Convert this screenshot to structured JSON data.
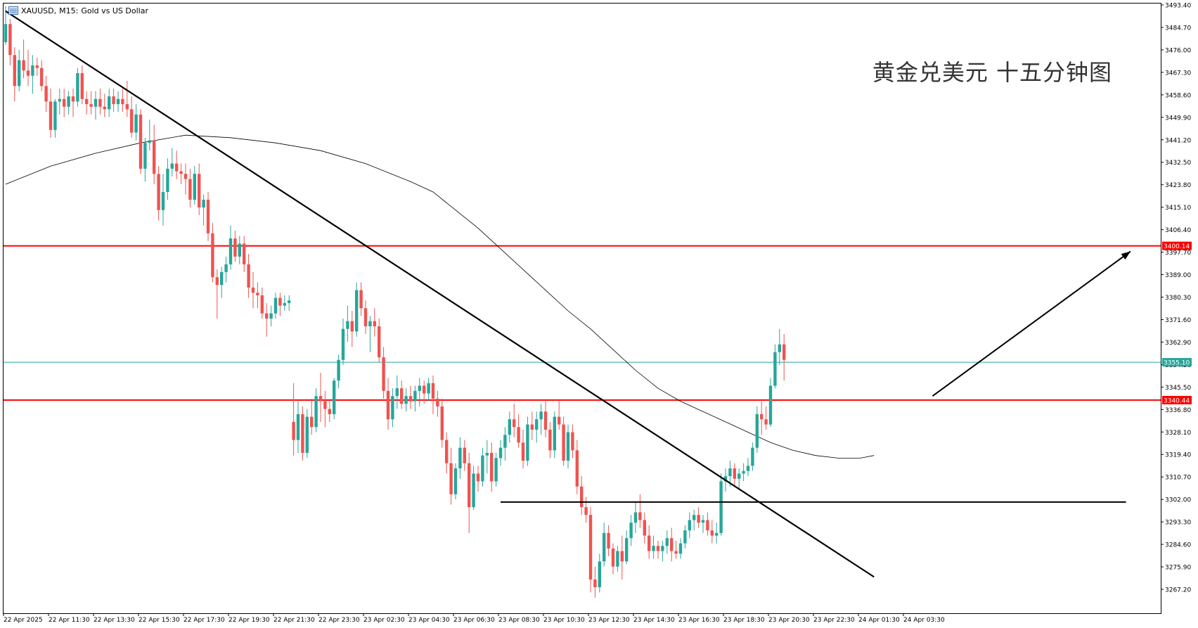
{
  "header": {
    "symbol": "XAUUSD,",
    "timeframe": "M15:",
    "description": "Gold vs US Dollar",
    "menu_icon": "chart-window-icon"
  },
  "overlay_title": "黄金兑美元 十五分钟图",
  "colors": {
    "bull": "#26a69a",
    "bear": "#ef5350",
    "horizontal_red": "#ff0000",
    "bid_line": "#26a69a",
    "ma_line": "#000000",
    "trend_line": "#000000"
  },
  "chart_data": {
    "type": "candlestick",
    "symbol": "XAUUSD",
    "timeframe": "M15",
    "ylim": [
      3261.0,
      3494.0
    ],
    "y_ticks": [
      "3493.40",
      "3484.70",
      "3476.00",
      "3467.30",
      "3458.60",
      "3449.90",
      "3441.20",
      "3432.50",
      "3423.80",
      "3415.10",
      "3406.40",
      "3397.70",
      "3389.00",
      "3380.30",
      "3371.60",
      "3362.90",
      "3354.20",
      "3345.50",
      "3336.80",
      "3328.10",
      "3319.40",
      "3310.70",
      "3302.00",
      "3293.30",
      "3284.60",
      "3275.90",
      "3267.20"
    ],
    "x_ticks": [
      "22 Apr 2025",
      "22 Apr 11:30",
      "22 Apr 13:30",
      "22 Apr 15:30",
      "22 Apr 17:30",
      "22 Apr 19:30",
      "22 Apr 21:30",
      "22 Apr 23:30",
      "23 Apr 02:30",
      "23 Apr 04:30",
      "23 Apr 06:30",
      "23 Apr 08:30",
      "23 Apr 10:30",
      "23 Apr 12:30",
      "23 Apr 14:30",
      "23 Apr 16:30",
      "23 Apr 18:30",
      "23 Apr 20:30",
      "23 Apr 22:30",
      "24 Apr 01:30",
      "24 Apr 03:30"
    ],
    "price_labels": [
      {
        "value": 3400.14,
        "text": "3400.14",
        "color": "#ff0000"
      },
      {
        "value": 3355.1,
        "text": "3355.10",
        "color": "#26a69a"
      },
      {
        "value": 3340.44,
        "text": "3340.44",
        "color": "#ff0000"
      }
    ],
    "horizontal_lines": [
      {
        "value": 3400.14,
        "color": "#ff0000"
      },
      {
        "value": 3355.1,
        "color": "#26a69a"
      },
      {
        "value": 3340.44,
        "color": "#ff0000"
      }
    ],
    "support_line": {
      "value": 3301.0,
      "from_index": 110,
      "to_index": 249
    },
    "trend_line": {
      "start": {
        "index": 0,
        "price": 3491.0
      },
      "end": {
        "index": 193,
        "price": 3272.0
      }
    },
    "arrow": {
      "start": {
        "index": 206,
        "price": 3342.0
      },
      "end": {
        "index": 250,
        "price": 3398.0
      }
    },
    "candles": [
      [
        3479,
        3493,
        3478,
        3486
      ],
      [
        3486,
        3488,
        3470,
        3474
      ],
      [
        3474,
        3477,
        3456,
        3462
      ],
      [
        3462,
        3476,
        3460,
        3472
      ],
      [
        3472,
        3480,
        3465,
        3468
      ],
      [
        3468,
        3476,
        3462,
        3466
      ],
      [
        3466,
        3474,
        3459,
        3470
      ],
      [
        3470,
        3473,
        3466,
        3469
      ],
      [
        3469,
        3472,
        3460,
        3462
      ],
      [
        3462,
        3466,
        3452,
        3456
      ],
      [
        3456,
        3461,
        3442,
        3445
      ],
      [
        3445,
        3457,
        3442,
        3456
      ],
      [
        3456,
        3461,
        3451,
        3457
      ],
      [
        3457,
        3461,
        3450,
        3454
      ],
      [
        3454,
        3460,
        3451,
        3458
      ],
      [
        3458,
        3461,
        3450,
        3456
      ],
      [
        3456,
        3469,
        3454,
        3467
      ],
      [
        3467,
        3470,
        3455,
        3457
      ],
      [
        3457,
        3460,
        3451,
        3455
      ],
      [
        3455,
        3460,
        3451,
        3454
      ],
      [
        3454,
        3460,
        3449,
        3457
      ],
      [
        3457,
        3461,
        3451,
        3454
      ],
      [
        3454,
        3459,
        3450,
        3453
      ],
      [
        3453,
        3461,
        3450,
        3458
      ],
      [
        3458,
        3461,
        3452,
        3455
      ],
      [
        3455,
        3460,
        3452,
        3457
      ],
      [
        3457,
        3461,
        3452,
        3455
      ],
      [
        3455,
        3464,
        3450,
        3453
      ],
      [
        3453,
        3458,
        3442,
        3444
      ],
      [
        3444,
        3455,
        3441,
        3451
      ],
      [
        3451,
        3453,
        3428,
        3430
      ],
      [
        3430,
        3442,
        3425,
        3440
      ],
      [
        3440,
        3449,
        3437,
        3441
      ],
      [
        3441,
        3447,
        3424,
        3428
      ],
      [
        3428,
        3431,
        3410,
        3414
      ],
      [
        3414,
        3428,
        3408,
        3421
      ],
      [
        3421,
        3434,
        3418,
        3430
      ],
      [
        3430,
        3438,
        3427,
        3432
      ],
      [
        3432,
        3437,
        3426,
        3429
      ],
      [
        3429,
        3432,
        3424,
        3428
      ],
      [
        3428,
        3432,
        3420,
        3426
      ],
      [
        3426,
        3430,
        3415,
        3418
      ],
      [
        3418,
        3431,
        3416,
        3428
      ],
      [
        3428,
        3432,
        3412,
        3415
      ],
      [
        3415,
        3420,
        3408,
        3418
      ],
      [
        3418,
        3421,
        3402,
        3405
      ],
      [
        3405,
        3409,
        3386,
        3388
      ],
      [
        3388,
        3391,
        3372,
        3385
      ],
      [
        3385,
        3392,
        3380,
        3390
      ],
      [
        3390,
        3396,
        3386,
        3393
      ],
      [
        3393,
        3408,
        3391,
        3403
      ],
      [
        3403,
        3406,
        3394,
        3396
      ],
      [
        3396,
        3404,
        3393,
        3401
      ],
      [
        3401,
        3404,
        3390,
        3393
      ],
      [
        3393,
        3397,
        3380,
        3384
      ],
      [
        3384,
        3390,
        3376,
        3382
      ],
      [
        3382,
        3386,
        3376,
        3381
      ],
      [
        3381,
        3384,
        3372,
        3374
      ],
      [
        3374,
        3378,
        3365,
        3372
      ],
      [
        3372,
        3377,
        3369,
        3374
      ],
      [
        3374,
        3382,
        3372,
        3380
      ],
      [
        3380,
        3382,
        3373,
        3377
      ],
      [
        3377,
        3381,
        3375,
        3378
      ],
      [
        3378,
        3381,
        3375,
        3379
      ],
      [
        3332,
        3347,
        3319,
        3325
      ],
      [
        3325,
        3340,
        3320,
        3335
      ],
      [
        3335,
        3338,
        3317,
        3320
      ],
      [
        3320,
        3337,
        3318,
        3334
      ],
      [
        3334,
        3341,
        3327,
        3330
      ],
      [
        3330,
        3345,
        3328,
        3342
      ],
      [
        3342,
        3351,
        3332,
        3340
      ],
      [
        3340,
        3344,
        3330,
        3337
      ],
      [
        3337,
        3340,
        3332,
        3335
      ],
      [
        3335,
        3349,
        3333,
        3348
      ],
      [
        3348,
        3358,
        3345,
        3356
      ],
      [
        3356,
        3372,
        3354,
        3368
      ],
      [
        3368,
        3377,
        3363,
        3371
      ],
      [
        3371,
        3375,
        3361,
        3367
      ],
      [
        3367,
        3386,
        3365,
        3383
      ],
      [
        3383,
        3386,
        3373,
        3376
      ],
      [
        3376,
        3379,
        3366,
        3369
      ],
      [
        3369,
        3373,
        3359,
        3371
      ],
      [
        3371,
        3376,
        3365,
        3369
      ],
      [
        3369,
        3372,
        3355,
        3357
      ],
      [
        3357,
        3361,
        3341,
        3344
      ],
      [
        3344,
        3349,
        3329,
        3333
      ],
      [
        3333,
        3345,
        3330,
        3342
      ],
      [
        3342,
        3350,
        3337,
        3345
      ],
      [
        3345,
        3348,
        3337,
        3339
      ],
      [
        3339,
        3345,
        3336,
        3342
      ],
      [
        3342,
        3346,
        3337,
        3340
      ],
      [
        3340,
        3346,
        3336,
        3344
      ],
      [
        3344,
        3349,
        3338,
        3346
      ],
      [
        3346,
        3348,
        3339,
        3343
      ],
      [
        3343,
        3349,
        3340,
        3347
      ],
      [
        3347,
        3350,
        3335,
        3341
      ],
      [
        3341,
        3344,
        3334,
        3338
      ],
      [
        3338,
        3341,
        3322,
        3325
      ],
      [
        3325,
        3328,
        3312,
        3316
      ],
      [
        3316,
        3322,
        3300,
        3304
      ],
      [
        3304,
        3316,
        3302,
        3314
      ],
      [
        3314,
        3326,
        3310,
        3322
      ],
      [
        3322,
        3325,
        3313,
        3316
      ],
      [
        3316,
        3320,
        3289,
        3299
      ],
      [
        3299,
        3315,
        3298,
        3312
      ],
      [
        3312,
        3315,
        3305,
        3309
      ],
      [
        3309,
        3322,
        3307,
        3319
      ],
      [
        3319,
        3325,
        3312,
        3320
      ],
      [
        3320,
        3324,
        3305,
        3309
      ],
      [
        3309,
        3320,
        3307,
        3318
      ],
      [
        3318,
        3325,
        3315,
        3322
      ],
      [
        3322,
        3330,
        3317,
        3327
      ],
      [
        3327,
        3336,
        3324,
        3333
      ],
      [
        3333,
        3339,
        3326,
        3330
      ],
      [
        3330,
        3335,
        3322,
        3324
      ],
      [
        3324,
        3329,
        3314,
        3317
      ],
      [
        3317,
        3334,
        3315,
        3331
      ],
      [
        3331,
        3336,
        3325,
        3329
      ],
      [
        3329,
        3336,
        3324,
        3333
      ],
      [
        3333,
        3339,
        3327,
        3336
      ],
      [
        3336,
        3340,
        3326,
        3329
      ],
      [
        3329,
        3332,
        3318,
        3321
      ],
      [
        3321,
        3336,
        3318,
        3334
      ],
      [
        3334,
        3340,
        3329,
        3331
      ],
      [
        3331,
        3334,
        3315,
        3317
      ],
      [
        3317,
        3331,
        3314,
        3328
      ],
      [
        3328,
        3331,
        3318,
        3321
      ],
      [
        3321,
        3325,
        3304,
        3307
      ],
      [
        3307,
        3311,
        3296,
        3299
      ],
      [
        3299,
        3303,
        3293,
        3296
      ],
      [
        3296,
        3299,
        3266,
        3271
      ],
      [
        3271,
        3276,
        3264,
        3268
      ],
      [
        3268,
        3281,
        3266,
        3278
      ],
      [
        3278,
        3293,
        3276,
        3289
      ],
      [
        3289,
        3292,
        3280,
        3283
      ],
      [
        3283,
        3285,
        3273,
        3276
      ],
      [
        3276,
        3284,
        3274,
        3282
      ],
      [
        3282,
        3288,
        3271,
        3278
      ],
      [
        3278,
        3290,
        3277,
        3287
      ],
      [
        3287,
        3296,
        3284,
        3293
      ],
      [
        3293,
        3301,
        3289,
        3297
      ],
      [
        3297,
        3304,
        3291,
        3294
      ],
      [
        3294,
        3297,
        3285,
        3288
      ],
      [
        3288,
        3292,
        3279,
        3282
      ],
      [
        3282,
        3288,
        3279,
        3284
      ],
      [
        3284,
        3286,
        3279,
        3282
      ],
      [
        3282,
        3286,
        3278,
        3284
      ],
      [
        3284,
        3290,
        3281,
        3287
      ],
      [
        3287,
        3291,
        3278,
        3282
      ],
      [
        3282,
        3286,
        3279,
        3281
      ],
      [
        3281,
        3287,
        3279,
        3285
      ],
      [
        3285,
        3292,
        3283,
        3290
      ],
      [
        3290,
        3297,
        3287,
        3294
      ],
      [
        3294,
        3298,
        3290,
        3296
      ],
      [
        3296,
        3299,
        3291,
        3293
      ],
      [
        3293,
        3296,
        3289,
        3294
      ],
      [
        3294,
        3297,
        3288,
        3290
      ],
      [
        3290,
        3294,
        3285,
        3288
      ],
      [
        3288,
        3293,
        3285,
        3289
      ],
      [
        3289,
        3312,
        3288,
        3309
      ],
      [
        3309,
        3314,
        3305,
        3311
      ],
      [
        3311,
        3317,
        3307,
        3314
      ],
      [
        3314,
        3316,
        3307,
        3310
      ],
      [
        3310,
        3314,
        3306,
        3312
      ],
      [
        3312,
        3316,
        3309,
        3313
      ],
      [
        3313,
        3318,
        3311,
        3315
      ],
      [
        3315,
        3324,
        3313,
        3322
      ],
      [
        3322,
        3338,
        3320,
        3335
      ],
      [
        3335,
        3340,
        3327,
        3333
      ],
      [
        3333,
        3338,
        3329,
        3331
      ],
      [
        3331,
        3349,
        3330,
        3346
      ],
      [
        3346,
        3362,
        3345,
        3359
      ],
      [
        3359,
        3368,
        3354,
        3362
      ],
      [
        3362,
        3366,
        3348,
        3356
      ]
    ],
    "ma": {
      "period": "unspecified",
      "values": [
        [
          0,
          3424
        ],
        [
          10,
          3431
        ],
        [
          20,
          3436
        ],
        [
          30,
          3440
        ],
        [
          40,
          3443
        ],
        [
          50,
          3442
        ],
        [
          60,
          3440
        ],
        [
          70,
          3437
        ],
        [
          80,
          3432
        ],
        [
          90,
          3425
        ],
        [
          95,
          3421
        ],
        [
          100,
          3414
        ],
        [
          105,
          3407
        ],
        [
          110,
          3399
        ],
        [
          115,
          3391
        ],
        [
          120,
          3383
        ],
        [
          125,
          3375
        ],
        [
          130,
          3368
        ],
        [
          135,
          3360
        ],
        [
          140,
          3352
        ],
        [
          145,
          3345
        ],
        [
          150,
          3340
        ],
        [
          155,
          3336
        ],
        [
          160,
          3332
        ],
        [
          165,
          3328
        ],
        [
          170,
          3324
        ],
        [
          175,
          3321
        ],
        [
          180,
          3319
        ],
        [
          185,
          3318
        ],
        [
          190,
          3318
        ],
        [
          193,
          3319
        ]
      ]
    }
  }
}
